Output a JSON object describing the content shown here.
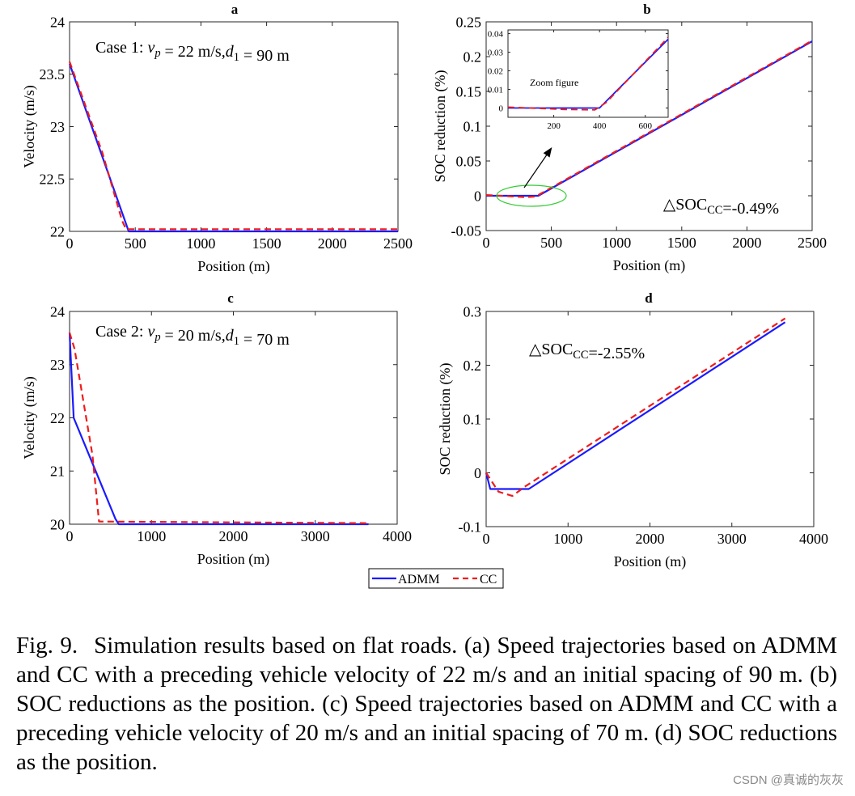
{
  "chart_data": [
    {
      "id": "a",
      "type": "line",
      "title": "a",
      "xlabel": "Position (m)",
      "ylabel": "Velocity (m/s)",
      "xlim": [
        0,
        2500
      ],
      "ylim": [
        22,
        24
      ],
      "xticks": [
        0,
        500,
        1000,
        1500,
        2000,
        2500
      ],
      "yticks": [
        22,
        22.5,
        23,
        23.5,
        24
      ],
      "ytick_labels": [
        "22",
        "22.5",
        "23",
        "23.5",
        "24"
      ],
      "annotation": "Case 1: v_p = 22 m/s,d_1 = 90 m",
      "series": [
        {
          "name": "ADMM",
          "x": [
            0,
            450,
            460,
            2500
          ],
          "y": [
            23.6,
            22,
            22,
            22
          ]
        },
        {
          "name": "CC",
          "x": [
            0,
            250,
            400,
            430,
            2500
          ],
          "y": [
            23.62,
            22.75,
            22.1,
            22.02,
            22.02
          ]
        }
      ]
    },
    {
      "id": "b",
      "type": "line",
      "title": "b",
      "xlabel": "Position (m)",
      "ylabel": "SOC reduction (%)",
      "xlim": [
        0,
        2500
      ],
      "ylim": [
        -0.05,
        0.25
      ],
      "xticks": [
        0,
        500,
        1000,
        1500,
        2000,
        2500
      ],
      "yticks": [
        -0.05,
        0,
        0.05,
        0.1,
        0.15,
        0.2,
        0.25
      ],
      "ytick_labels": [
        "-0.05",
        "0",
        "0.05",
        "0.1",
        "0.15",
        "0.2",
        "0.25"
      ],
      "annotation": "△SOC_CC=-0.49%",
      "series": [
        {
          "name": "ADMM",
          "x": [
            0,
            400,
            2500
          ],
          "y": [
            0,
            0,
            0.222
          ]
        },
        {
          "name": "CC",
          "x": [
            0,
            300,
            380,
            2500
          ],
          "y": [
            0.001,
            -0.002,
            -0.001,
            0.223
          ]
        }
      ],
      "inset": {
        "title": "Zoom figure",
        "xlim": [
          0,
          700
        ],
        "ylim": [
          -0.005,
          0.042
        ],
        "xticks": [
          200,
          400,
          600
        ],
        "yticks": [
          0,
          0.01,
          0.02,
          0.03,
          0.04
        ],
        "ytick_labels": [
          "0",
          "0.01",
          "0.02",
          "0.03",
          "0.04"
        ],
        "series": [
          {
            "name": "ADMM",
            "x": [
              0,
              400,
              700
            ],
            "y": [
              0,
              0,
              0.037
            ]
          },
          {
            "name": "CC",
            "x": [
              0,
              250,
              380,
              430,
              700
            ],
            "y": [
              0.0005,
              -0.0008,
              -0.001,
              0.003,
              0.038
            ]
          }
        ]
      }
    },
    {
      "id": "c",
      "type": "line",
      "title": "c",
      "xlabel": "Position (m)",
      "ylabel": "Velocity (m/s)",
      "xlim": [
        0,
        4000
      ],
      "ylim": [
        20,
        24
      ],
      "xticks": [
        0,
        1000,
        2000,
        3000,
        4000
      ],
      "yticks": [
        20,
        21,
        22,
        23,
        24
      ],
      "ytick_labels": [
        "20",
        "21",
        "22",
        "23",
        "24"
      ],
      "annotation": "Case 2: v_p = 20 m/s,d_1 = 70 m",
      "series": [
        {
          "name": "ADMM",
          "x": [
            0,
            50,
            560,
            600,
            3650
          ],
          "y": [
            23.6,
            22,
            20.1,
            20,
            20
          ]
        },
        {
          "name": "CC",
          "x": [
            0,
            60,
            280,
            360,
            3650
          ],
          "y": [
            23.6,
            23.3,
            21.3,
            20.05,
            20.02
          ]
        }
      ]
    },
    {
      "id": "d",
      "type": "line",
      "title": "d",
      "xlabel": "Position (m)",
      "ylabel": "SOC reduction (%)",
      "xlim": [
        0,
        4000
      ],
      "ylim": [
        -0.1,
        0.3
      ],
      "xticks": [
        0,
        1000,
        2000,
        3000,
        4000
      ],
      "yticks": [
        -0.1,
        0,
        0.1,
        0.2,
        0.3
      ],
      "ytick_labels": [
        "-0.1",
        "0",
        "0.1",
        "0.2",
        "0.3"
      ],
      "annotation": "△SOC_CC=-2.55%",
      "series": [
        {
          "name": "ADMM",
          "x": [
            0,
            50,
            520,
            3650
          ],
          "y": [
            0,
            -0.03,
            -0.03,
            0.28
          ]
        },
        {
          "name": "CC",
          "x": [
            0,
            150,
            320,
            480,
            3650
          ],
          "y": [
            0,
            -0.035,
            -0.043,
            -0.025,
            0.287
          ]
        }
      ]
    }
  ],
  "series_colors": {
    "ADMM": "#1a1aff",
    "CC": "#ee1c1c"
  },
  "legend": {
    "entries": [
      "ADMM",
      "CC"
    ],
    "placement": "bottom-center"
  },
  "caption": {
    "label": "Fig. 9.",
    "text": "Simulation results based on flat roads. (a) Speed trajectories based on ADMM and CC with a preceding vehicle velocity of 22 m/s and an initial spacing of 90 m. (b) SOC reductions as the position. (c) Speed trajectories based on ADMM and CC with a preceding vehicle velocity of 20 m/s and an initial spacing of 70 m. (d) SOC reductions as the position."
  },
  "watermark": "CSDN @真诚的灰灰"
}
